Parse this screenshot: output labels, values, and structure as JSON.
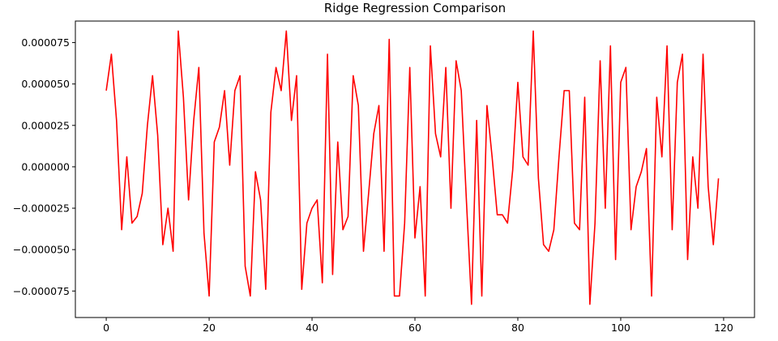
{
  "chart_data": {
    "type": "line",
    "title": "Ridge Regression Comparison",
    "xlabel": "",
    "ylabel": "",
    "xlim": [
      -6,
      126
    ],
    "ylim": [
      -9.1e-05,
      8.8e-05
    ],
    "xticks": [
      0,
      20,
      40,
      60,
      80,
      100,
      120
    ],
    "xtick_labels": [
      "0",
      "20",
      "40",
      "60",
      "80",
      "100",
      "120"
    ],
    "yticks": [
      -7.5e-05,
      -5e-05,
      -2.5e-05,
      0,
      2.5e-05,
      5e-05,
      7.5e-05
    ],
    "ytick_labels": [
      "−0.000075",
      "−0.000050",
      "−0.000025",
      "0.000000",
      "0.000025",
      "0.000050",
      "0.000075"
    ],
    "grid": false,
    "series": [
      {
        "color": "#ff0000",
        "x": [
          0,
          1,
          2,
          3,
          4,
          5,
          6,
          7,
          8,
          9,
          10,
          11,
          12,
          13,
          14,
          15,
          16,
          17,
          18,
          19,
          20,
          21,
          22,
          23,
          24,
          25,
          26,
          27,
          28,
          29,
          30,
          31,
          32,
          33,
          34,
          35,
          36,
          37,
          38,
          39,
          40,
          41,
          42,
          43,
          44,
          45,
          46,
          47,
          48,
          49,
          50,
          51,
          52,
          53,
          54,
          55,
          56,
          57,
          58,
          59,
          60,
          61,
          62,
          63,
          64,
          65,
          66,
          67,
          68,
          69,
          70,
          71,
          72,
          73,
          74,
          75,
          76,
          77,
          78,
          79,
          80,
          81,
          82,
          83,
          84,
          85,
          86,
          87,
          88,
          89,
          90,
          91,
          92,
          93,
          94,
          95,
          96,
          97,
          98,
          99,
          100,
          101,
          102,
          103,
          104,
          105,
          106,
          107,
          108,
          109,
          110,
          111,
          112,
          113,
          114,
          115,
          116,
          117,
          118,
          119
        ],
        "y": [
          4.6e-05,
          6.8e-05,
          2.8e-05,
          -3.8e-05,
          6e-06,
          -3.4e-05,
          -3e-05,
          -1.6e-05,
          2.5e-05,
          5.5e-05,
          1.9e-05,
          -4.7e-05,
          -2.5e-05,
          -5.1e-05,
          8.2e-05,
          4.2e-05,
          -2e-05,
          2.8e-05,
          6e-05,
          -4e-05,
          -7.8e-05,
          1.5e-05,
          2.4e-05,
          4.6e-05,
          1e-06,
          4.6e-05,
          5.5e-05,
          -6e-05,
          -7.8e-05,
          -3e-06,
          -2e-05,
          -7.4e-05,
          3.3e-05,
          6e-05,
          4.6e-05,
          8.2e-05,
          2.8e-05,
          5.5e-05,
          -7.4e-05,
          -3.4e-05,
          -2.5e-05,
          -2e-05,
          -7e-05,
          6.8e-05,
          -6.5e-05,
          1.5e-05,
          -3.8e-05,
          -3e-05,
          5.5e-05,
          3.7e-05,
          -5.1e-05,
          -1.6e-05,
          2e-05,
          3.7e-05,
          -5.1e-05,
          7.7e-05,
          -7.8e-05,
          -7.8e-05,
          -3.4e-05,
          6e-05,
          -4.3e-05,
          -1.2e-05,
          -7.8e-05,
          7.3e-05,
          2e-05,
          6e-06,
          6e-05,
          -2.5e-05,
          6.4e-05,
          4.6e-05,
          -2e-05,
          -8.3e-05,
          2.8e-05,
          -7.8e-05,
          3.7e-05,
          6e-06,
          -2.9e-05,
          -2.9e-05,
          -3.4e-05,
          -2e-06,
          5.1e-05,
          6e-06,
          1e-06,
          8.2e-05,
          -7e-06,
          -4.7e-05,
          -5.1e-05,
          -3.8e-05,
          6e-06,
          4.6e-05,
          4.6e-05,
          -3.4e-05,
          -3.8e-05,
          4.2e-05,
          -8.3e-05,
          -3.4e-05,
          6.4e-05,
          -2.5e-05,
          7.3e-05,
          -5.6e-05,
          5.1e-05,
          6e-05,
          -3.8e-05,
          -1.2e-05,
          -3e-06,
          1.1e-05,
          -7.8e-05,
          4.2e-05,
          6e-06,
          7.3e-05,
          -3.8e-05,
          5.1e-05,
          6.8e-05,
          -5.6e-05,
          6e-06,
          -2.5e-05,
          6.8e-05,
          -1.2e-05,
          -4.7e-05,
          -7e-06
        ]
      }
    ]
  }
}
